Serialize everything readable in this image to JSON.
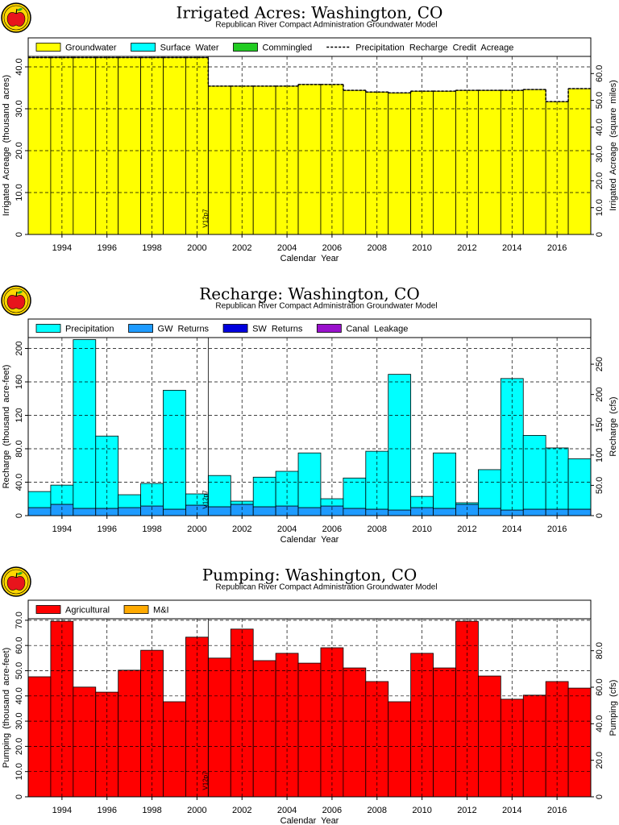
{
  "chart_data": [
    {
      "type": "bar",
      "title": "Irrigated Acres: Washington, CO",
      "subtitle": "Republican River Compact Administration Groundwater Model",
      "xlabel": "Calendar Year",
      "ylabel": "Irrigated Acreage (thousand acres)",
      "y2label": "Irrigated Acreage (square miles)",
      "x": [
        1993,
        1994,
        1995,
        1996,
        1997,
        1998,
        1999,
        2000,
        2001,
        2002,
        2003,
        2004,
        2005,
        2006,
        2007,
        2008,
        2009,
        2010,
        2011,
        2012,
        2013,
        2014,
        2015,
        2016,
        2017
      ],
      "xlim": [
        1992.5,
        2017.5
      ],
      "xticks": [
        1994,
        1996,
        1998,
        2000,
        2002,
        2004,
        2006,
        2008,
        2010,
        2012,
        2014,
        2016
      ],
      "ylim": [
        0,
        42.5
      ],
      "yticks": [
        0,
        {
          "value": 10,
          "label": "10.0"
        },
        {
          "value": 20,
          "label": "20.0"
        },
        {
          "value": 30,
          "label": "30.0"
        },
        {
          "value": 40,
          "label": "40.0"
        }
      ],
      "y2lim": [
        0,
        66.4
      ],
      "y2ticks": [
        0,
        {
          "value": 10,
          "label": "10.0"
        },
        {
          "value": 20,
          "label": "20.0"
        },
        {
          "value": 30,
          "label": "30.0"
        },
        {
          "value": 40,
          "label": "40.0"
        },
        {
          "value": 50,
          "label": "50.0"
        },
        {
          "value": 60,
          "label": "60.0"
        }
      ],
      "grid": true,
      "stacked": true,
      "series": [
        {
          "name": "Groundwater",
          "color": "#ffff00",
          "values": [
            42.2,
            42.2,
            42.2,
            42.2,
            42.2,
            42.2,
            42.2,
            42.2,
            35.4,
            35.4,
            35.4,
            35.4,
            35.8,
            35.8,
            34.4,
            34.0,
            33.8,
            34.2,
            34.2,
            34.4,
            34.4,
            34.4,
            34.6,
            31.7,
            34.8
          ]
        },
        {
          "name": "Surface Water",
          "color": "#00ffff",
          "values": [
            0,
            0,
            0,
            0,
            0,
            0,
            0,
            0,
            0,
            0,
            0,
            0,
            0,
            0,
            0,
            0,
            0,
            0,
            0,
            0,
            0,
            0,
            0,
            0,
            0
          ]
        },
        {
          "name": "Commingled",
          "color": "#22cc22",
          "values": [
            0,
            0,
            0,
            0,
            0,
            0,
            0,
            0,
            0,
            0,
            0,
            0,
            0,
            0,
            0,
            0,
            0,
            0,
            0,
            0,
            0,
            0,
            0,
            0,
            0
          ]
        },
        {
          "name": "Precipitation Recharge Credit Acreage",
          "color": "#000000",
          "type": "line",
          "dash": true,
          "values": [
            42.2,
            42.2,
            42.2,
            42.2,
            42.2,
            42.2,
            42.2,
            42.2,
            35.4,
            35.4,
            35.4,
            35.4,
            35.8,
            35.8,
            34.4,
            34.0,
            33.8,
            34.2,
            34.2,
            34.4,
            34.4,
            34.4,
            34.6,
            31.7,
            34.8
          ]
        }
      ],
      "annotations": [
        {
          "text": "V12p7",
          "x": 2000.5
        }
      ]
    },
    {
      "type": "bar",
      "title": "Recharge: Washington, CO",
      "subtitle": "Republican River Compact Administration Groundwater Model",
      "xlabel": "Calendar Year",
      "ylabel": "Recharge (thousand acre-feet)",
      "y2label": "Recharge (cfs)",
      "x": [
        1993,
        1994,
        1995,
        1996,
        1997,
        1998,
        1999,
        2000,
        2001,
        2002,
        2003,
        2004,
        2005,
        2006,
        2007,
        2008,
        2009,
        2010,
        2011,
        2012,
        2013,
        2014,
        2015,
        2016,
        2017
      ],
      "xlim": [
        1992.5,
        2017.5
      ],
      "xticks": [
        1994,
        1996,
        1998,
        2000,
        2002,
        2004,
        2006,
        2008,
        2010,
        2012,
        2014,
        2016
      ],
      "ylim": [
        0,
        213
      ],
      "yticks": [
        0,
        {
          "value": 40,
          "label": "40.0"
        },
        {
          "value": 80,
          "label": "80.0"
        },
        120,
        160,
        200
      ],
      "y2lim": [
        0,
        294
      ],
      "y2ticks": [
        0,
        {
          "value": 50,
          "label": "50.0"
        },
        100,
        150,
        200,
        250
      ],
      "grid": true,
      "stacked": true,
      "series": [
        {
          "name": "Precipitation",
          "color": "#00ffff",
          "values": [
            19.2,
            23.0,
            201.9,
            86.5,
            15.4,
            27.0,
            142.3,
            13.5,
            37.4,
            3.8,
            35.4,
            41.5,
            65.4,
            8.7,
            36.3,
            69.3,
            162.3,
            13.4,
            66.3,
            1.9,
            46.3,
            157.3,
            88.3,
            73.3,
            60.3
          ]
        },
        {
          "name": "GW Returns",
          "color": "#1e9bff",
          "values": [
            9.6,
            13.5,
            8.7,
            8.7,
            9.6,
            11.5,
            7.7,
            12.5,
            10.6,
            13.5,
            10.6,
            11.5,
            9.6,
            11.5,
            8.7,
            7.7,
            6.7,
            9.6,
            8.7,
            13.5,
            8.7,
            6.7,
            7.7,
            7.7,
            7.7
          ]
        },
        {
          "name": "SW Returns",
          "color": "#0000dd",
          "values": [
            0,
            0,
            0,
            0,
            0,
            0,
            0,
            0,
            0,
            0,
            0,
            0,
            0,
            0,
            0,
            0,
            0,
            0,
            0,
            0,
            0,
            0,
            0,
            0,
            0
          ]
        },
        {
          "name": "Canal Leakage",
          "color": "#9911cc",
          "values": [
            0,
            0,
            0,
            0,
            0,
            0,
            0,
            0,
            0,
            0,
            0,
            0,
            0,
            0,
            0,
            0,
            0,
            0,
            0,
            0,
            0,
            0,
            0,
            0,
            0
          ]
        }
      ],
      "annotations": [
        {
          "text": "V12p7",
          "x": 2000.5
        }
      ]
    },
    {
      "type": "bar",
      "title": "Pumping: Washington, CO",
      "subtitle": "Republican River Compact Administration Groundwater Model",
      "xlabel": "Calendar Year",
      "ylabel": "Pumping (thousand acre-feet)",
      "y2label": "Pumping (cfs)",
      "x": [
        1993,
        1994,
        1995,
        1996,
        1997,
        1998,
        1999,
        2000,
        2001,
        2002,
        2003,
        2004,
        2005,
        2006,
        2007,
        2008,
        2009,
        2010,
        2011,
        2012,
        2013,
        2014,
        2015,
        2016,
        2017
      ],
      "xlim": [
        1992.5,
        2017.5
      ],
      "xticks": [
        1994,
        1996,
        1998,
        2000,
        2002,
        2004,
        2006,
        2008,
        2010,
        2012,
        2014,
        2016
      ],
      "ylim": [
        0,
        70.6
      ],
      "yticks": [
        0,
        {
          "value": 10,
          "label": "10.0"
        },
        {
          "value": 20,
          "label": "20.0"
        },
        {
          "value": 30,
          "label": "30.0"
        },
        {
          "value": 40,
          "label": "40.0"
        },
        {
          "value": 50,
          "label": "50.0"
        },
        {
          "value": 60,
          "label": "60.0"
        },
        {
          "value": 70,
          "label": "70.0"
        }
      ],
      "y2lim": [
        0,
        97.5
      ],
      "y2ticks": [
        0,
        {
          "value": 20,
          "label": "20.0"
        },
        {
          "value": 40,
          "label": "40.0"
        },
        {
          "value": 60,
          "label": "60.0"
        },
        {
          "value": 80,
          "label": "80.0"
        }
      ],
      "grid": true,
      "stacked": true,
      "series": [
        {
          "name": "Agricultural",
          "color": "#ff0000",
          "values": [
            47.6,
            69.6,
            43.5,
            41.5,
            50.2,
            58.1,
            37.7,
            63.3,
            55.0,
            66.5,
            54.0,
            56.9,
            53.0,
            59.1,
            51.1,
            45.7,
            37.7,
            56.9,
            51.1,
            69.6,
            47.9,
            38.7,
            40.3,
            45.7,
            43.1
          ]
        },
        {
          "name": "M&I",
          "color": "#ffaa00",
          "values": [
            0,
            0,
            0,
            0,
            0,
            0,
            0,
            0,
            0,
            0,
            0,
            0,
            0,
            0,
            0,
            0,
            0,
            0,
            0,
            0,
            0,
            0,
            0,
            0,
            0
          ]
        }
      ],
      "annotations": [
        {
          "text": "V12p7",
          "x": 2000.5
        }
      ]
    }
  ]
}
